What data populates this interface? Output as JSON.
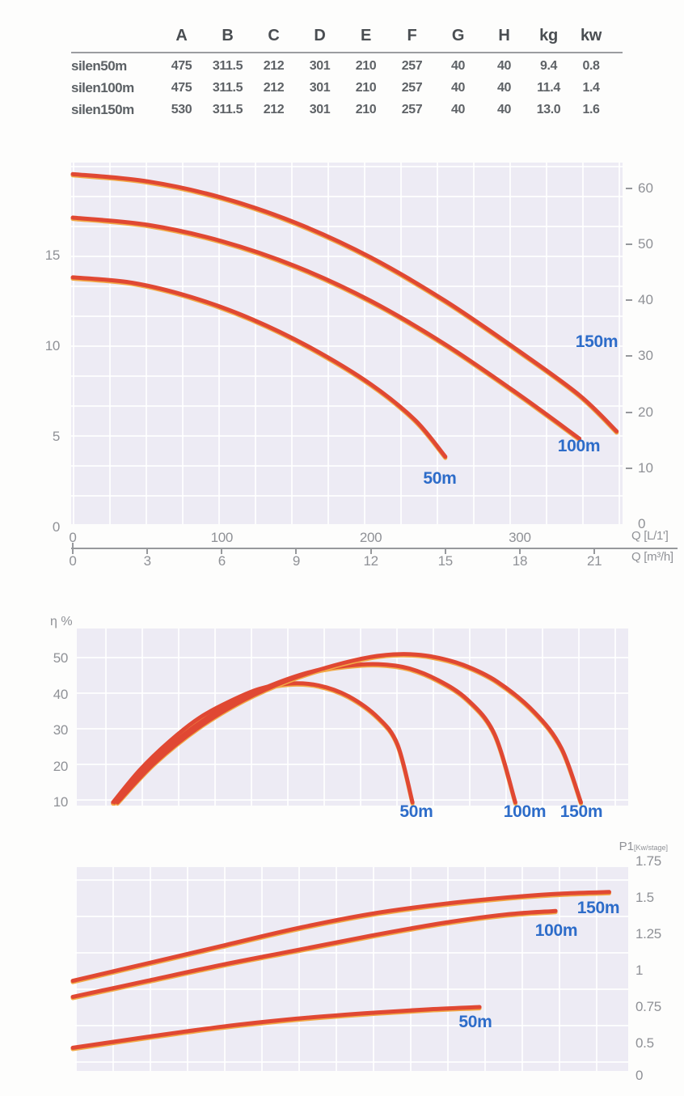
{
  "table": {
    "headers": [
      "A",
      "B",
      "C",
      "D",
      "E",
      "F",
      "G",
      "H",
      "kg",
      "kw"
    ],
    "rows": [
      {
        "name": "silen50m",
        "values": [
          "475",
          "311.5",
          "212",
          "301",
          "210",
          "257",
          "40",
          "40",
          "9.4",
          "0.8"
        ]
      },
      {
        "name": "silen100m",
        "values": [
          "475",
          "311.5",
          "212",
          "301",
          "210",
          "257",
          "40",
          "40",
          "11.4",
          "1.4"
        ]
      },
      {
        "name": "silen150m",
        "values": [
          "530",
          "311.5",
          "212",
          "301",
          "210",
          "257",
          "40",
          "40",
          "13.0",
          "1.6"
        ]
      }
    ]
  },
  "chart_data": {
    "type": "line",
    "x_shared": {
      "label_lmin": "Q [L/1']",
      "label_m3h": "Q [m³/h]",
      "ticks_lmin": [
        0,
        100,
        200,
        300
      ],
      "ticks_m3h": [
        0,
        3,
        6,
        9,
        12,
        15,
        18,
        21
      ],
      "xlim_lmin": [
        0,
        370
      ]
    },
    "charts": [
      {
        "key": "head",
        "name": "head-vs-flow",
        "y_left_ticks": [
          15,
          10,
          5,
          0
        ],
        "y_left_ylim": [
          0,
          20
        ],
        "y_right_ticks": [
          60,
          50,
          40,
          30,
          20,
          10,
          0
        ],
        "grid": true,
        "series": [
          {
            "name": "150m",
            "points": [
              [
                0,
                19.5
              ],
              [
                50,
                19.1
              ],
              [
                100,
                18.2
              ],
              [
                150,
                16.8
              ],
              [
                200,
                14.9
              ],
              [
                250,
                12.5
              ],
              [
                300,
                9.7
              ],
              [
                340,
                7.3
              ],
              [
                365,
                5.3
              ]
            ]
          },
          {
            "name": "100m",
            "points": [
              [
                0,
                17.1
              ],
              [
                50,
                16.7
              ],
              [
                100,
                15.8
              ],
              [
                150,
                14.4
              ],
              [
                200,
                12.5
              ],
              [
                250,
                10.1
              ],
              [
                300,
                7.3
              ],
              [
                340,
                4.9
              ]
            ]
          },
          {
            "name": "50m",
            "points": [
              [
                0,
                13.8
              ],
              [
                40,
                13.5
              ],
              [
                80,
                12.7
              ],
              [
                120,
                11.5
              ],
              [
                160,
                9.9
              ],
              [
                200,
                7.9
              ],
              [
                230,
                5.9
              ],
              [
                250,
                3.9
              ]
            ]
          }
        ]
      },
      {
        "key": "eff",
        "name": "efficiency-vs-flow",
        "title": "η %",
        "y_ticks": [
          50,
          40,
          30,
          20,
          10
        ],
        "ylim": [
          10,
          58
        ],
        "grid": true,
        "series": [
          {
            "name": "50m",
            "points": [
              [
                27,
                10
              ],
              [
                45,
                19
              ],
              [
                65,
                27
              ],
              [
                85,
                33.5
              ],
              [
                105,
                38
              ],
              [
                125,
                41.5
              ],
              [
                145,
                43
              ],
              [
                165,
                42.5
              ],
              [
                185,
                39.5
              ],
              [
                205,
                33.5
              ],
              [
                218,
                26
              ],
              [
                228,
                10
              ]
            ]
          },
          {
            "name": "100m",
            "points": [
              [
                28,
                10
              ],
              [
                50,
                20
              ],
              [
                75,
                29
              ],
              [
                100,
                36
              ],
              [
                130,
                42
              ],
              [
                160,
                46.3
              ],
              [
                185,
                48
              ],
              [
                205,
                48.4
              ],
              [
                225,
                47.3
              ],
              [
                245,
                44
              ],
              [
                265,
                38.5
              ],
              [
                283,
                29
              ],
              [
                297,
                10
              ]
            ]
          },
          {
            "name": "150m",
            "points": [
              [
                30,
                10
              ],
              [
                55,
                21
              ],
              [
                85,
                31
              ],
              [
                115,
                38.5
              ],
              [
                145,
                44
              ],
              [
                175,
                48
              ],
              [
                200,
                50.4
              ],
              [
                220,
                51.2
              ],
              [
                240,
                50.6
              ],
              [
                262,
                48.2
              ],
              [
                285,
                43.5
              ],
              [
                310,
                35
              ],
              [
                328,
                25
              ],
              [
                341,
                10
              ]
            ]
          }
        ]
      },
      {
        "key": "pow",
        "name": "power-vs-flow",
        "title": "P1",
        "title_sub": "[Kw/stage]",
        "y_ticks": [
          1.75,
          1.5,
          1.25,
          1,
          0.75,
          0.5,
          0
        ],
        "ylim": [
          0,
          1.75
        ],
        "grid": true,
        "series": [
          {
            "name": "150m",
            "points": [
              [
                0,
                0.93
              ],
              [
                50,
                1.05
              ],
              [
                100,
                1.17
              ],
              [
                150,
                1.29
              ],
              [
                200,
                1.39
              ],
              [
                250,
                1.46
              ],
              [
                300,
                1.51
              ],
              [
                330,
                1.53
              ],
              [
                360,
                1.54
              ]
            ]
          },
          {
            "name": "100m",
            "points": [
              [
                0,
                0.82
              ],
              [
                50,
                0.93
              ],
              [
                100,
                1.04
              ],
              [
                150,
                1.14
              ],
              [
                200,
                1.24
              ],
              [
                250,
                1.33
              ],
              [
                290,
                1.385
              ],
              [
                324,
                1.41
              ]
            ]
          },
          {
            "name": "50m",
            "points": [
              [
                0,
                0.47
              ],
              [
                50,
                0.545
              ],
              [
                100,
                0.615
              ],
              [
                150,
                0.67
              ],
              [
                200,
                0.71
              ],
              [
                240,
                0.735
              ],
              [
                273,
                0.75
              ]
            ]
          }
        ]
      }
    ]
  },
  "colors": {
    "curve_red": "#e04833",
    "curve_fringe": "#f2a946",
    "label_blue": "#2d6cc9",
    "plot_bg": "#edebf4",
    "grid_white": "#ffffff",
    "tick_gray": "#8f9196"
  }
}
